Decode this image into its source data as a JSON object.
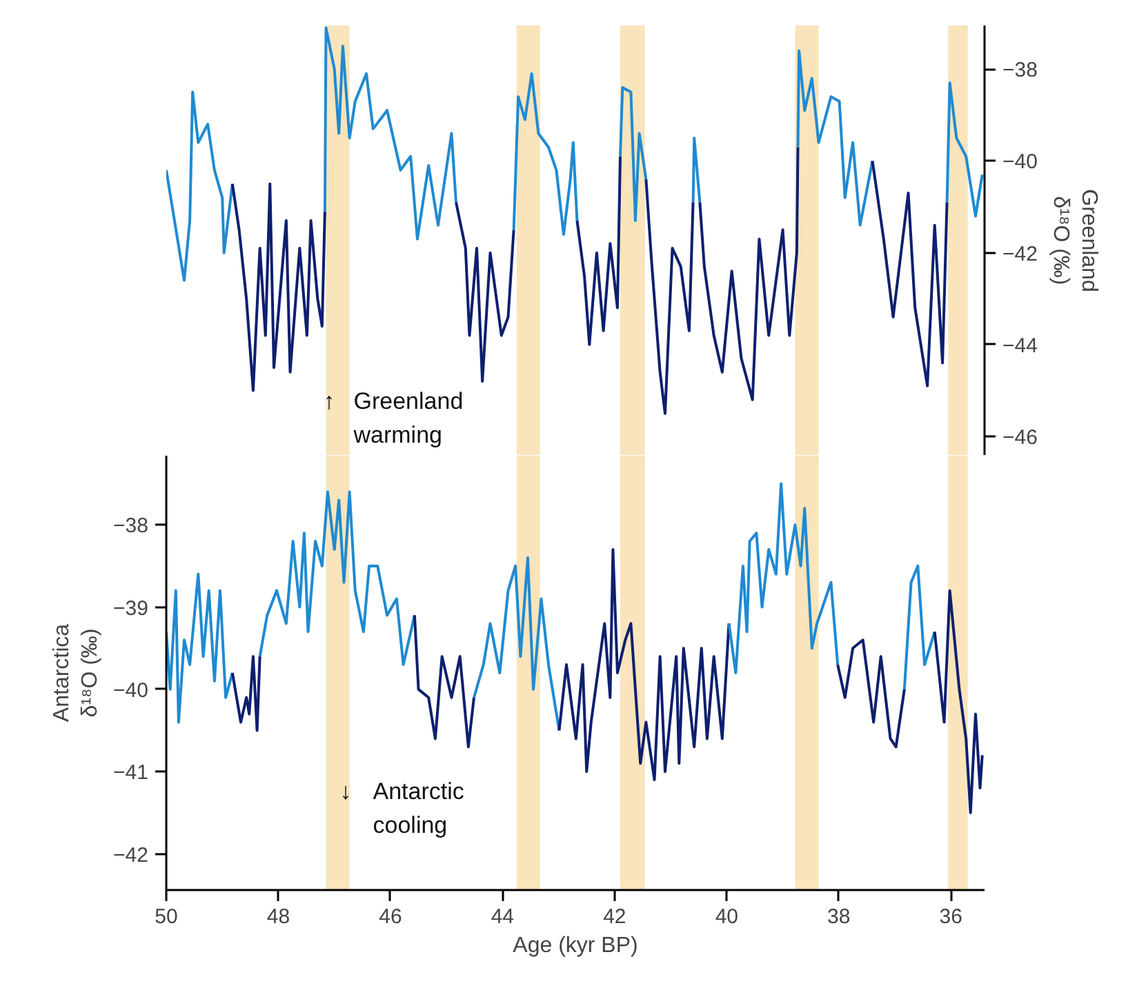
{
  "chart_data": [
    {
      "type": "line",
      "y2label": "Greenland\nδ¹⁸O (‰)",
      "xlim": [
        50,
        35.4
      ],
      "y2lim": [
        -46.42,
        -37.05
      ],
      "y2ticks": [
        -38,
        -40,
        -42,
        -44,
        -46
      ],
      "tick_labels": "y",
      "grid": false,
      "bands": [
        {
          "axis": "x",
          "from": 47.15,
          "to": 46.73,
          "color": "#f9e4bb"
        },
        {
          "axis": "x",
          "from": 43.75,
          "to": 43.33,
          "color": "#f9e4bb"
        },
        {
          "axis": "x",
          "from": 41.9,
          "to": 41.46,
          "color": "#f9e4bb"
        },
        {
          "axis": "x",
          "from": 38.78,
          "to": 38.36,
          "color": "#f9e4bb"
        },
        {
          "axis": "x",
          "from": 36.05,
          "to": 35.7,
          "color": "#f9e4bb"
        }
      ],
      "annotations": [
        "↑",
        "Greenland\nwarming"
      ],
      "series": [
        {
          "axis": "y2",
          "color": "#1f8ad2",
          "x": [
            50.0,
            49.88,
            49.68,
            49.58,
            49.53,
            49.43,
            49.26,
            49.14,
            49.0,
            48.97,
            48.82
          ],
          "values": [
            -40.2,
            -41.1,
            -42.6,
            -41.3,
            -38.5,
            -39.6,
            -39.2,
            -40.2,
            -40.8,
            -42.0,
            -40.5
          ]
        },
        {
          "axis": "y2",
          "color": "#0d1f6e",
          "x": [
            48.82,
            48.7,
            48.57,
            48.45,
            48.33,
            48.23,
            48.15,
            48.08,
            47.86,
            47.79,
            47.62,
            47.49,
            47.42,
            47.3,
            47.22,
            47.17
          ],
          "values": [
            -40.5,
            -41.5,
            -43.0,
            -45.0,
            -41.9,
            -43.8,
            -40.5,
            -44.5,
            -41.3,
            -44.6,
            -41.9,
            -43.8,
            -41.3,
            -43.0,
            -43.6,
            -41.1
          ]
        },
        {
          "axis": "y2",
          "color": "#1f8ad2",
          "x": [
            47.17,
            47.15,
            47.0,
            46.92,
            46.85,
            46.73,
            46.63,
            46.43,
            46.31,
            46.06,
            45.82,
            45.64,
            45.52,
            45.32,
            45.15,
            44.91,
            44.83
          ],
          "values": [
            -41.1,
            -37.1,
            -38.0,
            -39.4,
            -37.5,
            -39.5,
            -38.7,
            -38.1,
            -39.3,
            -38.9,
            -40.2,
            -39.9,
            -41.7,
            -40.1,
            -41.4,
            -39.4,
            -40.9
          ]
        },
        {
          "axis": "y2",
          "color": "#0d1f6e",
          "x": [
            44.83,
            44.66,
            44.59,
            44.46,
            44.36,
            44.22,
            44.02,
            43.9,
            43.8
          ],
          "values": [
            -40.9,
            -41.9,
            -43.8,
            -41.9,
            -44.8,
            -42.0,
            -43.8,
            -43.4,
            -41.5
          ]
        },
        {
          "axis": "y2",
          "color": "#1f8ad2",
          "x": [
            43.8,
            43.72,
            43.6,
            43.48,
            43.36,
            43.18,
            43.04,
            42.91,
            42.79,
            42.74,
            42.67
          ],
          "values": [
            -41.5,
            -38.6,
            -39.1,
            -38.1,
            -39.4,
            -39.7,
            -40.2,
            -41.6,
            -40.4,
            -39.6,
            -41.3
          ]
        },
        {
          "axis": "y2",
          "color": "#0d1f6e",
          "x": [
            42.67,
            42.54,
            42.45,
            42.32,
            42.2,
            42.08,
            41.95,
            41.9
          ],
          "values": [
            -41.3,
            -42.5,
            -44.0,
            -42.0,
            -43.7,
            -41.8,
            -43.2,
            -39.9
          ]
        },
        {
          "axis": "y2",
          "color": "#1f8ad2",
          "x": [
            41.9,
            41.86,
            41.71,
            41.63,
            41.56,
            41.44
          ],
          "values": [
            -39.9,
            -38.4,
            -38.5,
            -41.3,
            -39.4,
            -40.4
          ]
        },
        {
          "axis": "y2",
          "color": "#0d1f6e",
          "x": [
            41.44,
            41.34,
            41.19,
            41.1,
            40.97,
            40.82,
            40.67,
            40.6
          ],
          "values": [
            -40.4,
            -42.2,
            -44.6,
            -45.5,
            -41.9,
            -42.3,
            -43.7,
            -40.9
          ]
        },
        {
          "axis": "y2",
          "color": "#1f8ad2",
          "x": [
            40.6,
            40.58,
            40.48
          ],
          "values": [
            -40.9,
            -39.5,
            -40.9
          ]
        },
        {
          "axis": "y2",
          "color": "#0d1f6e",
          "x": [
            40.48,
            40.4,
            40.23,
            40.08,
            39.91,
            39.74,
            39.54,
            39.42,
            39.25,
            39.0,
            38.88,
            38.75,
            38.73
          ],
          "values": [
            -40.9,
            -42.3,
            -43.8,
            -44.6,
            -42.4,
            -44.3,
            -45.2,
            -41.7,
            -43.8,
            -41.5,
            -43.8,
            -42.0,
            -39.7
          ]
        },
        {
          "axis": "y2",
          "color": "#1f8ad2",
          "x": [
            38.73,
            38.71,
            38.61,
            38.48,
            38.36,
            38.14,
            37.99,
            37.89,
            37.75,
            37.62,
            37.4
          ],
          "values": [
            -39.7,
            -37.6,
            -38.9,
            -38.2,
            -39.6,
            -38.6,
            -38.7,
            -40.8,
            -39.6,
            -41.4,
            -40.0
          ]
        },
        {
          "axis": "y2",
          "color": "#0d1f6e",
          "x": [
            37.4,
            37.2,
            37.03,
            36.76,
            36.64,
            36.42,
            36.29,
            36.15,
            36.07
          ],
          "values": [
            -40.0,
            -41.7,
            -43.4,
            -40.7,
            -43.2,
            -44.9,
            -41.4,
            -44.4,
            -40.9
          ]
        },
        {
          "axis": "y2",
          "color": "#1f8ad2",
          "x": [
            36.07,
            36.02,
            35.9,
            35.73,
            35.56,
            35.44
          ],
          "values": [
            -40.9,
            -38.3,
            -39.5,
            -39.9,
            -41.2,
            -40.3
          ]
        }
      ]
    },
    {
      "type": "line",
      "xlabel": "Age (kyr BP)",
      "ylabel": "Antarctica\nδ¹⁸O (‰)",
      "xlim": [
        50,
        35.4
      ],
      "xticks": [
        50,
        48,
        46,
        44,
        42,
        40,
        38,
        36
      ],
      "ylim": [
        -42.44,
        -37.16
      ],
      "yticks": [
        -38,
        -39,
        -40,
        -41,
        -42
      ],
      "grid": false,
      "bands": [
        {
          "axis": "x",
          "from": 47.15,
          "to": 46.73,
          "color": "#f9e4bb"
        },
        {
          "axis": "x",
          "from": 43.75,
          "to": 43.33,
          "color": "#f9e4bb"
        },
        {
          "axis": "x",
          "from": 41.9,
          "to": 41.46,
          "color": "#f9e4bb"
        },
        {
          "axis": "x",
          "from": 38.78,
          "to": 38.36,
          "color": "#f9e4bb"
        },
        {
          "axis": "x",
          "from": 36.05,
          "to": 35.7,
          "color": "#f9e4bb"
        }
      ],
      "annotations": [
        "↓",
        "Antarctic\ncooling"
      ],
      "series": [
        {
          "color": "#1f8ad2",
          "x": [
            50.0,
            49.93,
            49.83,
            49.78,
            49.68,
            49.58,
            49.43,
            49.34,
            49.24,
            49.14,
            49.04,
            48.94,
            48.82
          ],
          "values": [
            -39.3,
            -40.0,
            -38.8,
            -40.4,
            -39.4,
            -39.7,
            -38.6,
            -39.6,
            -38.8,
            -39.9,
            -38.8,
            -40.1,
            -39.8
          ]
        },
        {
          "color": "#0d1f6e",
          "x": [
            48.82,
            48.67,
            48.57,
            48.52,
            48.45,
            48.38,
            48.33
          ],
          "values": [
            -39.8,
            -40.4,
            -40.1,
            -40.3,
            -39.6,
            -40.5,
            -39.6
          ]
        },
        {
          "color": "#1f8ad2",
          "x": [
            48.33,
            48.2,
            48.03,
            47.86,
            47.74,
            47.62,
            47.54,
            47.47,
            47.34,
            47.22,
            47.12,
            47.0,
            46.92,
            46.83,
            46.73,
            46.63,
            46.48,
            46.38,
            46.23,
            46.06,
            45.89,
            45.77,
            45.57
          ],
          "values": [
            -39.6,
            -39.1,
            -38.8,
            -39.2,
            -38.2,
            -39.0,
            -38.1,
            -39.3,
            -38.2,
            -38.5,
            -37.6,
            -38.3,
            -37.7,
            -38.7,
            -37.6,
            -38.8,
            -39.3,
            -38.5,
            -38.5,
            -39.1,
            -38.9,
            -39.7,
            -39.1
          ]
        },
        {
          "color": "#0d1f6e",
          "x": [
            45.57,
            45.5,
            45.32,
            45.2,
            45.08,
            44.91,
            44.76,
            44.61,
            44.51
          ],
          "values": [
            -39.1,
            -40.0,
            -40.1,
            -40.6,
            -39.6,
            -40.1,
            -39.6,
            -40.7,
            -40.1
          ]
        },
        {
          "color": "#1f8ad2",
          "x": [
            44.51,
            44.34,
            44.22,
            44.05,
            43.9,
            43.77,
            43.68,
            43.55,
            43.45,
            43.31,
            43.18,
            42.99
          ],
          "values": [
            -40.1,
            -39.7,
            -39.2,
            -39.8,
            -38.8,
            -38.5,
            -39.6,
            -38.4,
            -40.0,
            -38.9,
            -39.7,
            -40.5
          ]
        },
        {
          "color": "#0d1f6e",
          "x": [
            42.99,
            42.86,
            42.69,
            42.57,
            42.5,
            42.42,
            42.3,
            42.18,
            42.08,
            42.03,
            41.95,
            41.81,
            41.71,
            41.63,
            41.54,
            41.44,
            41.29,
            41.19,
            41.1,
            40.9,
            40.85,
            40.77,
            40.58,
            40.45,
            40.35,
            40.23,
            40.08,
            39.96
          ],
          "values": [
            -40.5,
            -39.7,
            -40.6,
            -39.7,
            -41.0,
            -40.4,
            -39.8,
            -39.2,
            -40.1,
            -38.3,
            -39.8,
            -39.4,
            -39.2,
            -40.0,
            -40.9,
            -40.4,
            -41.1,
            -39.6,
            -41.0,
            -39.6,
            -40.9,
            -39.5,
            -40.7,
            -39.5,
            -40.6,
            -39.6,
            -40.6,
            -39.2
          ]
        },
        {
          "color": "#1f8ad2",
          "x": [
            39.96,
            39.84,
            39.71,
            39.64,
            39.59,
            39.47,
            39.37,
            39.25,
            39.12,
            39.03,
            38.93,
            38.78,
            38.68,
            38.61,
            38.48,
            38.39,
            38.14,
            38.02
          ],
          "values": [
            -39.2,
            -39.8,
            -38.5,
            -39.3,
            -38.2,
            -38.1,
            -39.0,
            -38.3,
            -38.6,
            -37.5,
            -38.6,
            -38.0,
            -38.5,
            -37.8,
            -39.5,
            -39.2,
            -38.7,
            -39.7
          ]
        },
        {
          "color": "#0d1f6e",
          "x": [
            38.02,
            37.89,
            37.75,
            37.57,
            37.38,
            37.25,
            37.08,
            36.98,
            36.83
          ],
          "values": [
            -39.7,
            -40.1,
            -39.5,
            -39.4,
            -40.4,
            -39.6,
            -40.6,
            -40.7,
            -40.0
          ]
        },
        {
          "color": "#1f8ad2",
          "x": [
            36.83,
            36.71,
            36.59,
            36.47,
            36.29
          ],
          "values": [
            -40.0,
            -38.7,
            -38.5,
            -39.7,
            -39.3
          ]
        },
        {
          "color": "#0d1f6e",
          "x": [
            36.29,
            36.12,
            36.02,
            35.85,
            35.73,
            35.65,
            35.56,
            35.48,
            35.44
          ],
          "values": [
            -39.3,
            -40.4,
            -38.8,
            -40.0,
            -40.6,
            -41.5,
            -40.3,
            -41.2,
            -40.8
          ]
        }
      ]
    }
  ]
}
